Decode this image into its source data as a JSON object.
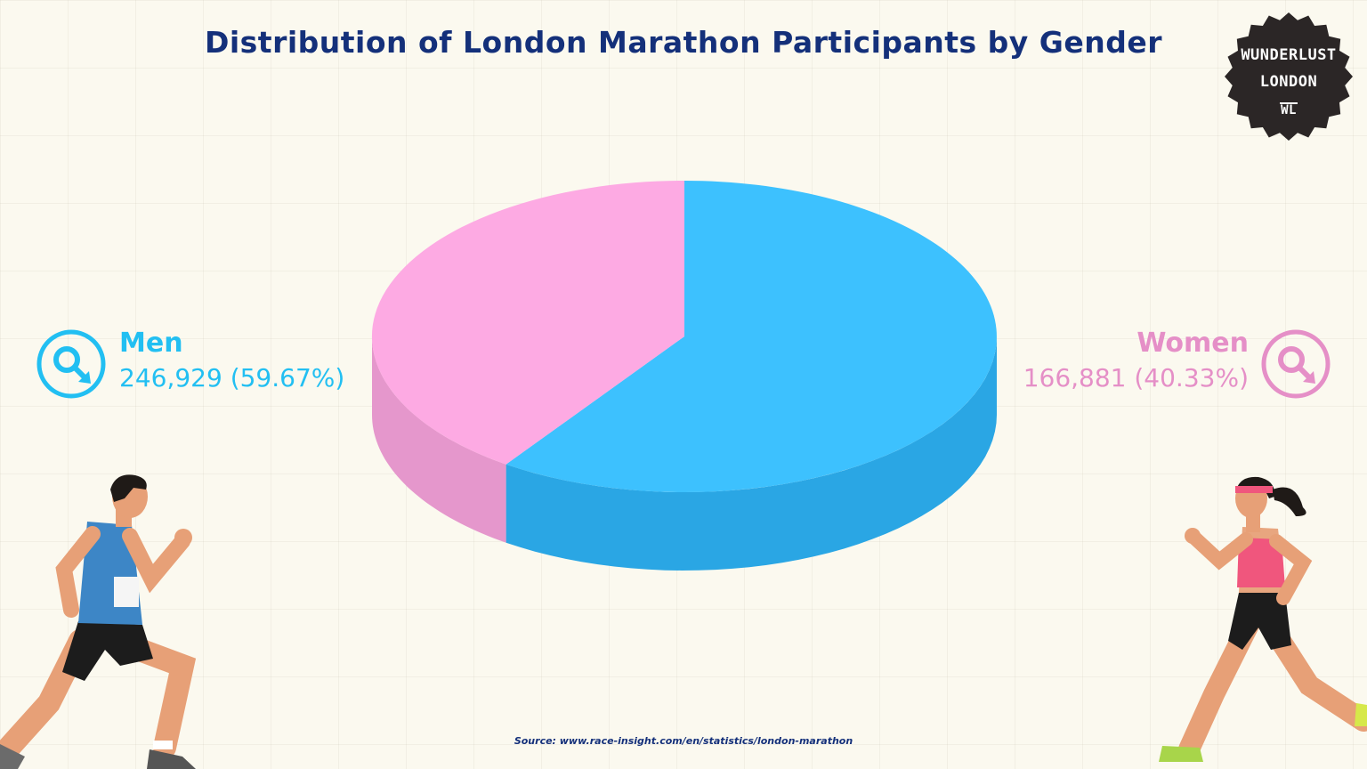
{
  "title": "Distribution of London Marathon Participants by Gender",
  "logo": {
    "line1": "WUNDERLUST",
    "line2": "LONDON",
    "line3": "WL"
  },
  "source": "Source: www.race-insight.com/en/statistics/london-marathon",
  "colors": {
    "men": "#3dc1fe",
    "men_side": "#2aa6e4",
    "women": "#fdaae3",
    "women_side": "#e597cc",
    "title": "#14307a",
    "background": "#fbf9ef"
  },
  "legend": {
    "men": {
      "name": "Men",
      "value": "246,929 (59.67%)",
      "icon": "male-symbol-icon"
    },
    "women": {
      "name": "Women",
      "value": "166,881 (40.33%)",
      "icon": "female-symbol-icon"
    }
  },
  "chart_data": {
    "type": "pie",
    "title": "Distribution of London Marathon Participants by Gender",
    "style": "3d",
    "series": [
      {
        "name": "Men",
        "value": 246929,
        "percent": 59.67,
        "color": "#3dc1fe"
      },
      {
        "name": "Women",
        "value": 166881,
        "percent": 40.33,
        "color": "#fdaae3"
      }
    ]
  }
}
